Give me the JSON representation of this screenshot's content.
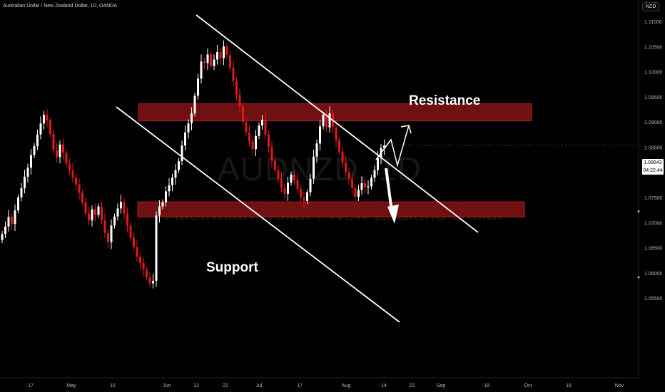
{
  "header": {
    "title": "Australian Dollar / New Zealand Dollar, 1D, OANDA",
    "currency_badge": "NZD"
  },
  "watermark": {
    "symbol": "AUDNZD, 1D",
    "name": "Australian Dollar / New Zealand Dollar"
  },
  "annotations": {
    "resistance_label": "Resistance",
    "support_label": "Support"
  },
  "price_tag": {
    "price": "1.08543",
    "countdown": "04:22:44"
  },
  "colors": {
    "background": "#000000",
    "candle_up": "#ffffff",
    "candle_down": "#e5161b",
    "zone_fill": "#7a1212",
    "zone_border": "#b42626",
    "line": "#ffffff"
  },
  "chart_data": {
    "type": "candlestick",
    "symbol": "AUDNZD",
    "timeframe": "1D",
    "ylim": [
      1.0515,
      1.1115
    ],
    "y_ticks": [
      "1.11000",
      "1.10500",
      "1.10000",
      "1.09500",
      "1.09000",
      "1.08500",
      "1.08000",
      "1.07500",
      "1.07000",
      "1.06500",
      "1.06000",
      "1.05500"
    ],
    "x_ticks": [
      "17",
      "May",
      "15",
      "Jun",
      "12",
      "21",
      "Jul",
      "17",
      "Aug",
      "14",
      "23",
      "Sep",
      "18",
      "Oct",
      "16",
      "Nov"
    ],
    "resistance_zone": [
      1.0903,
      1.0937
    ],
    "support_zone": [
      1.0712,
      1.0742
    ],
    "current_price": 1.08543,
    "closes": [
      1.0678,
      1.0693,
      1.0712,
      1.0698,
      1.0725,
      1.0751,
      1.0769,
      1.0792,
      1.081,
      1.0835,
      1.0853,
      1.0876,
      1.0898,
      1.0915,
      1.0904,
      1.0877,
      1.0845,
      1.0831,
      1.0856,
      1.084,
      1.0818,
      1.0805,
      1.079,
      1.0777,
      1.076,
      1.0741,
      1.0719,
      1.0705,
      1.0727,
      1.0716,
      1.0733,
      1.0705,
      1.068,
      1.0662,
      1.0695,
      1.0713,
      1.0729,
      1.0742,
      1.0719,
      1.0695,
      1.0671,
      1.0652,
      1.0633,
      1.0621,
      1.0607,
      1.0592,
      1.058,
      1.0585,
      1.0715,
      1.0733,
      1.0741,
      1.0763,
      1.0775,
      1.079,
      1.0805,
      1.0823,
      1.0854,
      1.088,
      1.0898,
      1.0918,
      1.0953,
      1.0987,
      1.1021,
      1.1018,
      1.1035,
      1.1012,
      1.1025,
      1.104,
      1.1028,
      1.1051,
      1.1034,
      1.1009,
      1.0982,
      1.0955,
      1.0932,
      1.0901,
      1.088,
      1.0862,
      1.0847,
      1.0873,
      1.0894,
      1.0905,
      1.0876,
      1.0851,
      1.0824,
      1.0805,
      1.0788,
      1.077,
      1.0758,
      1.078,
      1.0796,
      1.0785,
      1.0768,
      1.0751,
      1.0744,
      1.0761,
      1.0788,
      1.0832,
      1.0858,
      1.0892,
      1.0915,
      1.089,
      1.0918,
      1.0891,
      1.0865,
      1.0842,
      1.082,
      1.0801,
      1.0788,
      1.077,
      1.0752,
      1.0766,
      1.0779,
      1.0771,
      1.0773,
      1.079,
      1.0805,
      1.0829,
      1.0849,
      1.0854
    ]
  }
}
